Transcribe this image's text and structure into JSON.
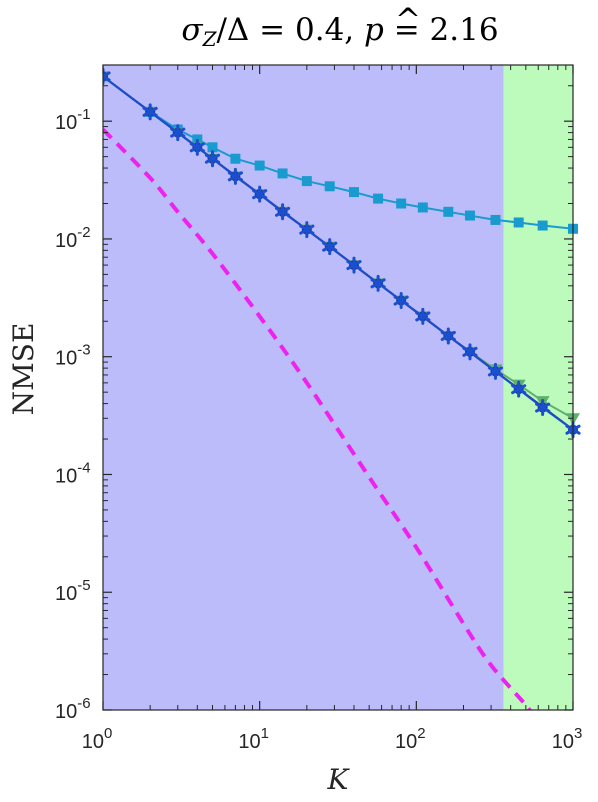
{
  "chart_data": {
    "type": "line",
    "title": "σZ/Δ = 0.4,  p̂ = 2.16",
    "title_parts": {
      "sigma": "σ",
      "sub": "Z",
      "rest": "/Δ = 0.4,  ",
      "p": "p",
      "hat": "^",
      "val": " = 2.16"
    },
    "xlabel": "K",
    "ylabel": "NMSE",
    "xscale": "log",
    "yscale": "log",
    "xlim": [
      1,
      1000
    ],
    "ylim": [
      1e-06,
      0.3
    ],
    "xticks": [
      {
        "value": 1,
        "base": "10",
        "exp": "0"
      },
      {
        "value": 10,
        "base": "10",
        "exp": "1"
      },
      {
        "value": 100,
        "base": "10",
        "exp": "2"
      },
      {
        "value": 1000,
        "base": "10",
        "exp": "3"
      }
    ],
    "yticks": [
      {
        "value": 1e-06,
        "base": "10",
        "exp": "-6"
      },
      {
        "value": 1e-05,
        "base": "10",
        "exp": "-5"
      },
      {
        "value": 0.0001,
        "base": "10",
        "exp": "-4"
      },
      {
        "value": 0.001,
        "base": "10",
        "exp": "-3"
      },
      {
        "value": 0.01,
        "base": "10",
        "exp": "-2"
      },
      {
        "value": 0.1,
        "base": "10",
        "exp": "-1"
      }
    ],
    "regions": [
      {
        "x_from": 1,
        "x_to": 360,
        "color": "#bcbcfb"
      },
      {
        "x_from": 360,
        "x_to": 1000,
        "color": "#bdfbbc"
      }
    ],
    "grid": false,
    "series": [
      {
        "marker": "square",
        "color": "#1a9bd0",
        "x": [
          1,
          2,
          3,
          4,
          5,
          7,
          10,
          14,
          20,
          28,
          40,
          57,
          80,
          110,
          160,
          220,
          320,
          450,
          640,
          1000
        ],
        "y": [
          0.24,
          0.12,
          0.085,
          0.07,
          0.06,
          0.048,
          0.042,
          0.036,
          0.031,
          0.028,
          0.025,
          0.022,
          0.02,
          0.0185,
          0.017,
          0.0158,
          0.0145,
          0.0138,
          0.013,
          0.0122
        ]
      },
      {
        "marker": "triangle",
        "color": "#5eb070",
        "x": [
          1,
          2,
          3,
          4,
          5,
          7,
          10,
          14,
          20,
          28,
          40,
          57,
          80,
          110,
          160,
          220,
          320,
          450,
          640,
          1000
        ],
        "y": [
          0.24,
          0.12,
          0.08,
          0.06,
          0.048,
          0.034,
          0.024,
          0.017,
          0.012,
          0.0086,
          0.006,
          0.0042,
          0.003,
          0.0022,
          0.0015,
          0.0011,
          0.00078,
          0.00058,
          0.00042,
          0.0003
        ]
      },
      {
        "marker": "circle",
        "color": "#1d3a8a",
        "x": [
          1,
          2,
          3,
          4,
          5,
          7,
          10,
          14,
          20,
          28,
          40,
          57,
          80,
          110,
          160,
          220,
          320,
          450,
          640,
          1000
        ],
        "y": [
          0.24,
          0.12,
          0.08,
          0.06,
          0.048,
          0.034,
          0.024,
          0.017,
          0.012,
          0.0086,
          0.006,
          0.0042,
          0.003,
          0.0022,
          0.0015,
          0.0011,
          0.00075,
          0.00053,
          0.00037,
          0.00024
        ]
      },
      {
        "marker": "none",
        "color": "#3a1a7a",
        "x": [
          1,
          1000
        ],
        "y": [
          0.24,
          0.00024
        ]
      },
      {
        "marker": "asterisk",
        "color": "#1a4fd0",
        "x": [
          1,
          2,
          3,
          4,
          5,
          7,
          10,
          14,
          20,
          28,
          40,
          57,
          80,
          110,
          160,
          220,
          320,
          450,
          640,
          1000
        ],
        "y": [
          0.24,
          0.12,
          0.08,
          0.06,
          0.048,
          0.034,
          0.024,
          0.017,
          0.012,
          0.0086,
          0.006,
          0.0042,
          0.003,
          0.0022,
          0.0015,
          0.0011,
          0.00075,
          0.00053,
          0.00037,
          0.00024
        ]
      },
      {
        "marker": "none",
        "dashed": true,
        "color": "#ee22ee",
        "x": [
          1,
          2,
          3,
          5,
          10,
          20,
          50,
          100,
          200,
          300,
          500,
          700,
          800
        ],
        "y": [
          0.085,
          0.033,
          0.017,
          0.0075,
          0.0022,
          0.0006,
          9.5e-05,
          2.4e-05,
          5.4e-06,
          2.4e-06,
          1.1e-06,
          6.3e-07,
          1e-06
        ]
      }
    ]
  }
}
